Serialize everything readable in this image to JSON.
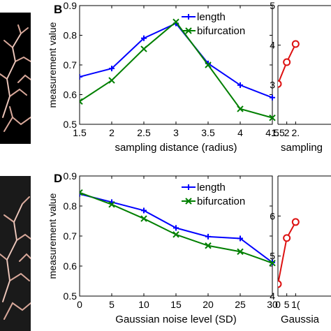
{
  "panel_letters": {
    "b": "B",
    "d": "D"
  },
  "chart_data": [
    {
      "type": "line",
      "panel": "B",
      "xlabel": "sampling distance (radius)",
      "ylabel": "measurement value",
      "xlim": [
        1.5,
        4.5
      ],
      "ylim": [
        0.5,
        0.9
      ],
      "xticks": [
        "1.5",
        "2",
        "2.5",
        "3",
        "3.5",
        "4",
        "4.5"
      ],
      "yticks": [
        "0.5",
        "0.6",
        "0.7",
        "0.8",
        "0.9"
      ],
      "x": [
        1.5,
        2,
        2.5,
        3,
        3.5,
        4,
        4.5
      ],
      "legend": "top-right",
      "grid": false,
      "series": [
        {
          "name": "length",
          "color": "#0000ff",
          "marker": "plus",
          "values": [
            0.66,
            0.688,
            0.79,
            0.84,
            0.705,
            0.632,
            0.59
          ]
        },
        {
          "name": "bifurcation",
          "color": "#007f00",
          "marker": "x",
          "values": [
            0.577,
            0.648,
            0.754,
            0.845,
            0.7,
            0.552,
            0.522
          ]
        }
      ]
    },
    {
      "type": "line",
      "panel": "B-right",
      "xlabel": "sampling",
      "ylabel": "",
      "xlim": [
        1.5,
        4.5
      ],
      "ylim": [
        2,
        5
      ],
      "xticks": [
        "1.5",
        "2",
        "2."
      ],
      "yticks": [
        "3",
        "4",
        "5"
      ],
      "x": [
        1.5,
        2,
        2.5
      ],
      "grid": false,
      "series": [
        {
          "name": "",
          "color": "#dd1111",
          "marker": "circle",
          "values": [
            3.02,
            3.57,
            4.03
          ]
        }
      ]
    },
    {
      "type": "line",
      "panel": "D",
      "xlabel": "Gaussian noise level (SD)",
      "ylabel": "measurement value",
      "xlim": [
        0,
        30
      ],
      "ylim": [
        0.5,
        0.9
      ],
      "xticks": [
        "0",
        "5",
        "10",
        "15",
        "20",
        "25",
        "30"
      ],
      "yticks": [
        "0.5",
        "0.6",
        "0.7",
        "0.8",
        "0.9"
      ],
      "x": [
        0,
        5,
        10,
        15,
        20,
        25,
        30
      ],
      "legend": "top-right",
      "grid": false,
      "series": [
        {
          "name": "length",
          "color": "#0000ff",
          "marker": "plus",
          "values": [
            0.84,
            0.813,
            0.785,
            0.727,
            0.698,
            0.692,
            0.612
          ]
        },
        {
          "name": "bifurcation",
          "color": "#007f00",
          "marker": "x",
          "values": [
            0.845,
            0.805,
            0.758,
            0.705,
            0.668,
            0.648,
            0.61
          ]
        }
      ]
    },
    {
      "type": "line",
      "panel": "D-right",
      "xlabel": "Gaussia",
      "ylabel": "",
      "xlim": [
        0,
        30
      ],
      "ylim": [
        4,
        7
      ],
      "xticks": [
        "0",
        "5",
        "1("
      ],
      "yticks": [
        "4",
        "5",
        "6"
      ],
      "x": [
        0,
        5,
        10
      ],
      "grid": false,
      "series": [
        {
          "name": "",
          "color": "#dd1111",
          "marker": "circle",
          "values": [
            4.3,
            5.45,
            5.85
          ]
        }
      ]
    }
  ]
}
